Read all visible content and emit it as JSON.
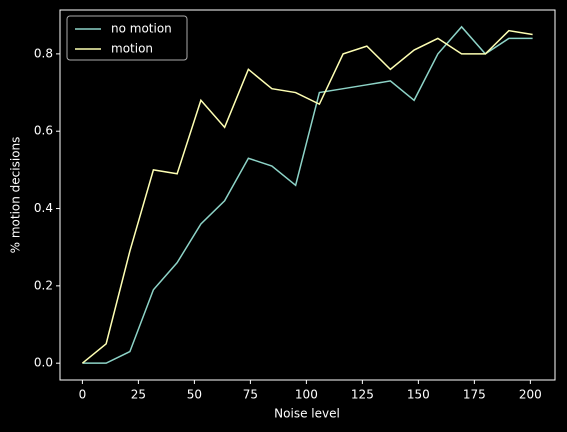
{
  "chart_data": {
    "type": "line",
    "xlabel": "Noise level",
    "ylabel": "% motion decisions",
    "x": [
      0,
      10.6,
      21.2,
      31.7,
      42.3,
      52.9,
      63.5,
      74.1,
      84.6,
      95.2,
      105.8,
      116.4,
      127,
      137.5,
      148.1,
      158.7,
      169.3,
      179.9,
      190.4,
      201
    ],
    "series": [
      {
        "name": "no motion",
        "color": "#8dd3c7",
        "values": [
          0,
          0,
          0.03,
          0.19,
          0.26,
          0.36,
          0.42,
          0.53,
          0.51,
          0.46,
          0.7,
          0.71,
          0.72,
          0.73,
          0.68,
          0.8,
          0.87,
          0.8,
          0.84,
          0.84
        ]
      },
      {
        "name": "motion",
        "color": "#feffb3",
        "values": [
          0,
          0.05,
          0.29,
          0.5,
          0.49,
          0.68,
          0.61,
          0.76,
          0.71,
          0.7,
          0.67,
          0.8,
          0.82,
          0.76,
          0.81,
          0.84,
          0.8,
          0.8,
          0.86,
          0.85
        ]
      }
    ],
    "xlim": [
      -10,
      211
    ],
    "ylim": [
      -0.0435,
      0.9135
    ],
    "xticks": [
      0,
      25,
      50,
      75,
      100,
      125,
      150,
      175,
      200
    ],
    "yticks": [
      {
        "value": 0,
        "label": "0.0"
      },
      0.2,
      0.4,
      0.6,
      0.8
    ],
    "legend": "upper left"
  }
}
